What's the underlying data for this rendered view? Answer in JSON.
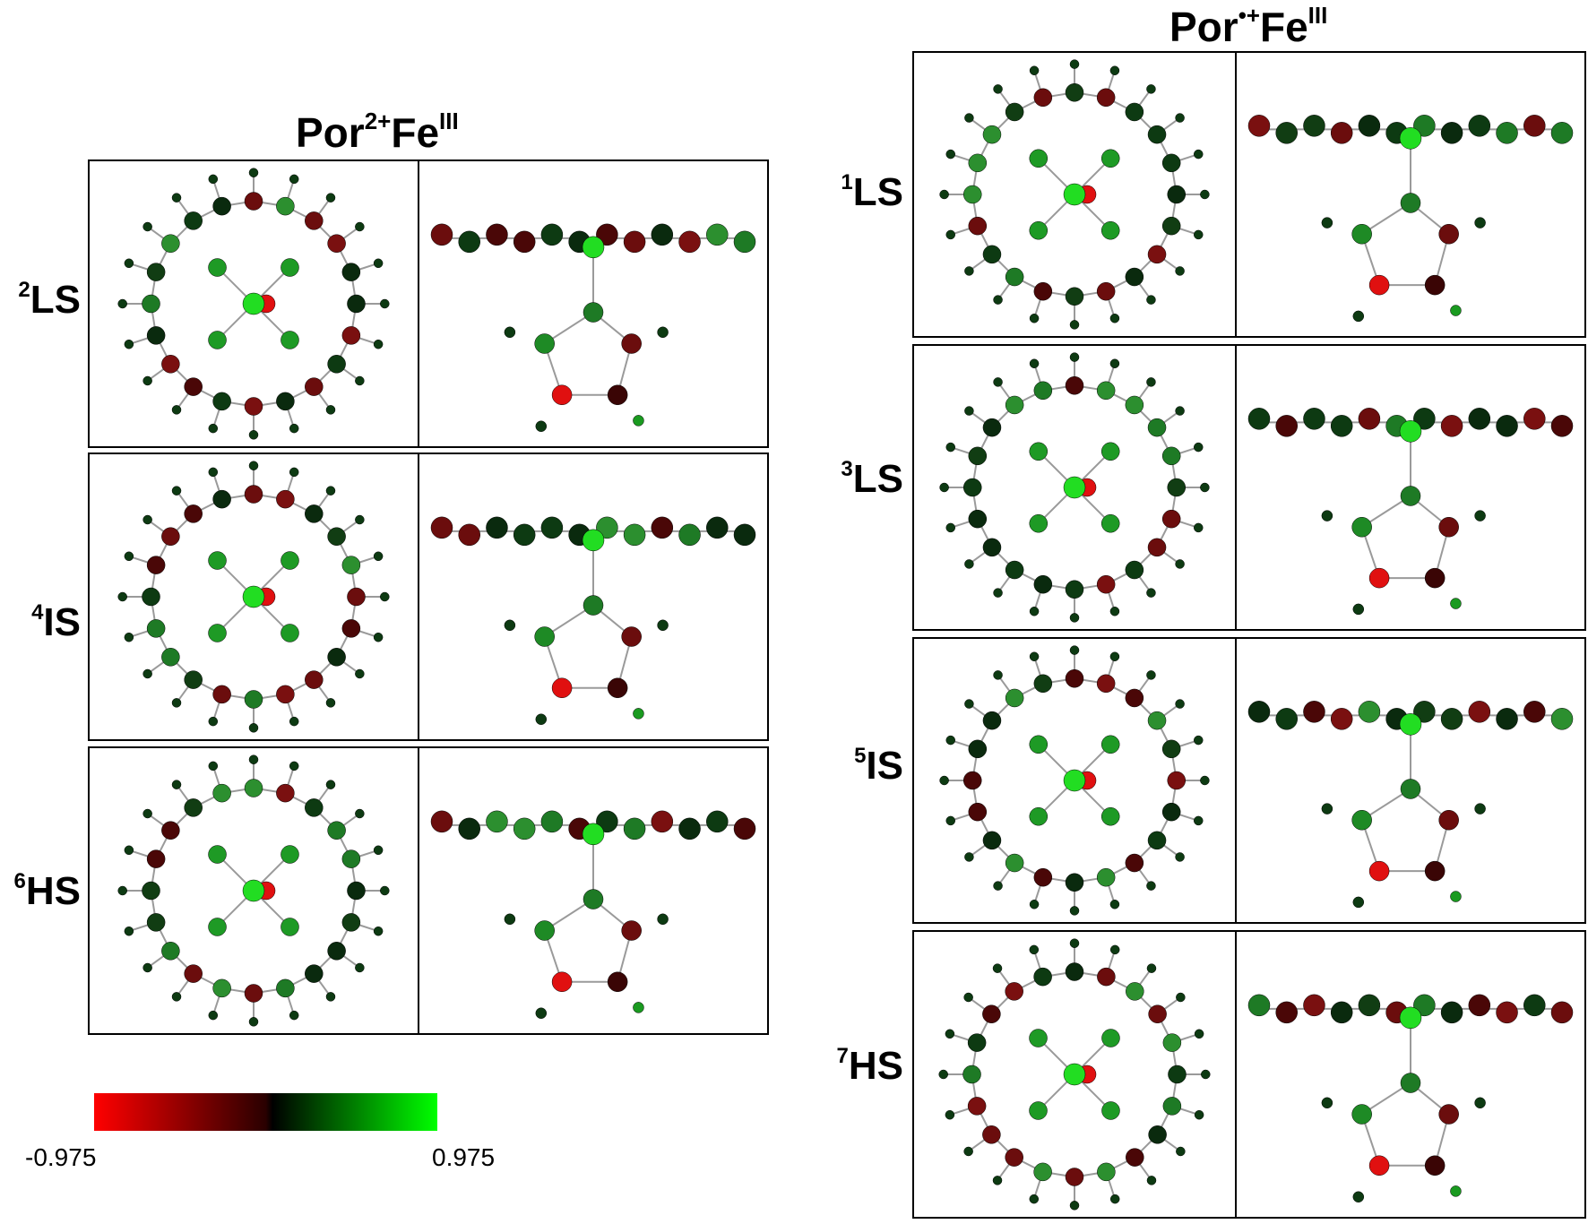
{
  "headings": {
    "left": {
      "base": "Por",
      "sup1": "2+",
      "mid": "Fe",
      "sup2": "III"
    },
    "right": {
      "base": "Por",
      "sup1": "•+",
      "mid": "Fe",
      "sup2": "III"
    }
  },
  "rows_left": [
    {
      "sup": "2",
      "label": "LS"
    },
    {
      "sup": "4",
      "label": "IS"
    },
    {
      "sup": "6",
      "label": "HS"
    }
  ],
  "rows_right": [
    {
      "sup": "1",
      "label": "LS"
    },
    {
      "sup": "3",
      "label": "LS"
    },
    {
      "sup": "5",
      "label": "IS"
    },
    {
      "sup": "7",
      "label": "HS"
    }
  ],
  "colorbar": {
    "min": "-0.975",
    "max": "0.975",
    "colors": [
      "#ff0000",
      "#000000",
      "#00ff00"
    ]
  }
}
